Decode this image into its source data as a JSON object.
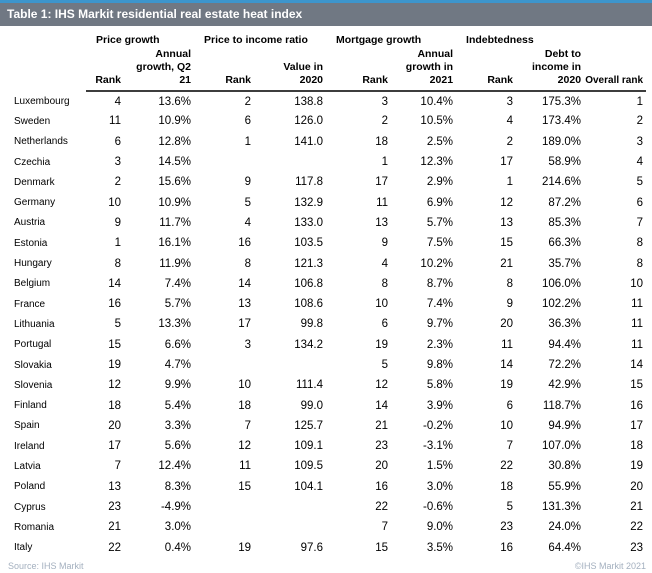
{
  "title_bar": {
    "title": "Table 1: IHS Markit residential real estate heat index"
  },
  "header": {
    "groups": [
      {
        "label": "Price growth"
      },
      {
        "label": "Price to income ratio"
      },
      {
        "label": "Mortgage growth"
      },
      {
        "label": "Indebtedness"
      }
    ],
    "sub": [
      "Rank",
      "Annual\ngrowth, Q2\n21",
      "Rank",
      "Value in\n2020",
      "Rank",
      "Annual\ngrowth in\n2021",
      "Rank",
      "Debt to\nincome in\n2020",
      "Overall rank"
    ]
  },
  "footer": {
    "source": "Source: IHS Markit",
    "copyright": "©IHS Markit 2021"
  },
  "colors": {
    "accent_blue": "#3d95cc",
    "title_bar_gray": "#707883",
    "header_rule": "#3d3d3d",
    "footer_text": "#a4b0bf"
  },
  "chart_data": {
    "type": "table",
    "title": "Table 1: IHS Markit residential real estate heat index",
    "column_groups": [
      "Price growth",
      "Price to income ratio",
      "Mortgage growth",
      "Indebtedness"
    ],
    "columns": [
      "Country",
      "Price growth rank",
      "Price growth annual growth, Q2 21",
      "Price to income ratio rank",
      "Price to income ratio value in 2020",
      "Mortgage growth rank",
      "Mortgage annual growth in 2021",
      "Indebtedness rank",
      "Debt to income in 2020",
      "Overall rank"
    ],
    "rows": [
      {
        "country": "Luxembourg",
        "cells": [
          "4",
          "13.6%",
          "2",
          "138.8",
          "3",
          "10.4%",
          "3",
          "175.3%",
          "1"
        ]
      },
      {
        "country": "Sweden",
        "cells": [
          "11",
          "10.9%",
          "6",
          "126.0",
          "2",
          "10.5%",
          "4",
          "173.4%",
          "2"
        ]
      },
      {
        "country": "Netherlands",
        "cells": [
          "6",
          "12.8%",
          "1",
          "141.0",
          "18",
          "2.5%",
          "2",
          "189.0%",
          "3"
        ]
      },
      {
        "country": "Czechia",
        "cells": [
          "3",
          "14.5%",
          "",
          "",
          "1",
          "12.3%",
          "17",
          "58.9%",
          "4"
        ]
      },
      {
        "country": "Denmark",
        "cells": [
          "2",
          "15.6%",
          "9",
          "117.8",
          "17",
          "2.9%",
          "1",
          "214.6%",
          "5"
        ]
      },
      {
        "country": "Germany",
        "cells": [
          "10",
          "10.9%",
          "5",
          "132.9",
          "11",
          "6.9%",
          "12",
          "87.2%",
          "6"
        ]
      },
      {
        "country": "Austria",
        "cells": [
          "9",
          "11.7%",
          "4",
          "133.0",
          "13",
          "5.7%",
          "13",
          "85.3%",
          "7"
        ]
      },
      {
        "country": "Estonia",
        "cells": [
          "1",
          "16.1%",
          "16",
          "103.5",
          "9",
          "7.5%",
          "15",
          "66.3%",
          "8"
        ]
      },
      {
        "country": "Hungary",
        "cells": [
          "8",
          "11.9%",
          "8",
          "121.3",
          "4",
          "10.2%",
          "21",
          "35.7%",
          "8"
        ]
      },
      {
        "country": "Belgium",
        "cells": [
          "14",
          "7.4%",
          "14",
          "106.8",
          "8",
          "8.7%",
          "8",
          "106.0%",
          "10"
        ]
      },
      {
        "country": "France",
        "cells": [
          "16",
          "5.7%",
          "13",
          "108.6",
          "10",
          "7.4%",
          "9",
          "102.2%",
          "11"
        ]
      },
      {
        "country": "Lithuania",
        "cells": [
          "5",
          "13.3%",
          "17",
          "99.8",
          "6",
          "9.7%",
          "20",
          "36.3%",
          "11"
        ]
      },
      {
        "country": "Portugal",
        "cells": [
          "15",
          "6.6%",
          "3",
          "134.2",
          "19",
          "2.3%",
          "11",
          "94.4%",
          "11"
        ]
      },
      {
        "country": "Slovakia",
        "cells": [
          "19",
          "4.7%",
          "",
          "",
          "5",
          "9.8%",
          "14",
          "72.2%",
          "14"
        ]
      },
      {
        "country": "Slovenia",
        "cells": [
          "12",
          "9.9%",
          "10",
          "111.4",
          "12",
          "5.8%",
          "19",
          "42.9%",
          "15"
        ]
      },
      {
        "country": "Finland",
        "cells": [
          "18",
          "5.4%",
          "18",
          "99.0",
          "14",
          "3.9%",
          "6",
          "118.7%",
          "16"
        ]
      },
      {
        "country": "Spain",
        "cells": [
          "20",
          "3.3%",
          "7",
          "125.7",
          "21",
          "-0.2%",
          "10",
          "94.9%",
          "17"
        ]
      },
      {
        "country": "Ireland",
        "cells": [
          "17",
          "5.6%",
          "12",
          "109.1",
          "23",
          "-3.1%",
          "7",
          "107.0%",
          "18"
        ]
      },
      {
        "country": "Latvia",
        "cells": [
          "7",
          "12.4%",
          "11",
          "109.5",
          "20",
          "1.5%",
          "22",
          "30.8%",
          "19"
        ]
      },
      {
        "country": "Poland",
        "cells": [
          "13",
          "8.3%",
          "15",
          "104.1",
          "16",
          "3.0%",
          "18",
          "55.9%",
          "20"
        ]
      },
      {
        "country": "Cyprus",
        "cells": [
          "23",
          "-4.9%",
          "",
          "",
          "22",
          "-0.6%",
          "5",
          "131.3%",
          "21"
        ]
      },
      {
        "country": "Romania",
        "cells": [
          "21",
          "3.0%",
          "",
          "",
          "7",
          "9.0%",
          "23",
          "24.0%",
          "22"
        ]
      },
      {
        "country": "Italy",
        "cells": [
          "22",
          "0.4%",
          "19",
          "97.6",
          "15",
          "3.5%",
          "16",
          "64.4%",
          "23"
        ]
      }
    ]
  }
}
